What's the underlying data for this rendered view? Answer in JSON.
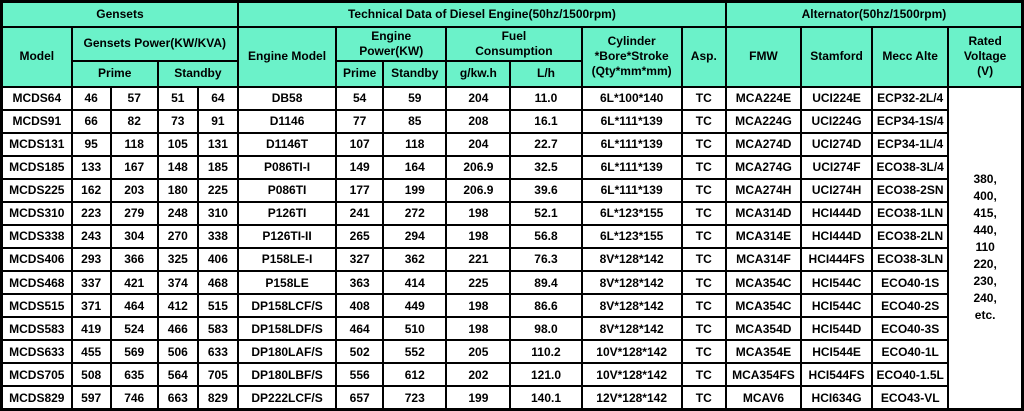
{
  "table": {
    "groups": {
      "gensets": "Gensets",
      "engine": "Technical Data of Diesel Engine(50hz/1500rpm)",
      "alternator": "Alternator(50hz/1500rpm)"
    },
    "headers": {
      "model": "Model",
      "gensets_power": "Gensets Power(KW/KVA)",
      "prime": "Prime",
      "standby": "Standby",
      "engine_model": "Engine Model",
      "engine_power": "Engine\nPower(KW)",
      "engine_prime": "Prime",
      "engine_standby": "Standby",
      "fuel_consumption": "Fuel\nConsumption",
      "g_kwh": "g/kw.h",
      "lh": "L/h",
      "cylinder": "Cylinder\n*Bore*Stroke\n(Qty*mm*mm)",
      "asp": "Asp.",
      "fmw": "FMW",
      "stamford": "Stamford",
      "mecc_alte": "Mecc Alte",
      "rated_voltage": "Rated\nVoltage\n(V)"
    },
    "rated_voltage_text": "380,\n400,\n415,\n440,\n110\n220,\n230,\n240,\netc.",
    "rows": [
      [
        "MCDS64",
        "46",
        "57",
        "51",
        "64",
        "DB58",
        "54",
        "59",
        "204",
        "11.0",
        "6L*100*140",
        "TC",
        "MCA224E",
        "UCI224E",
        "ECP32-2L/4"
      ],
      [
        "MCDS91",
        "66",
        "82",
        "73",
        "91",
        "D1146",
        "77",
        "85",
        "208",
        "16.1",
        "6L*111*139",
        "TC",
        "MCA224G",
        "UCI224G",
        "ECP34-1S/4"
      ],
      [
        "MCDS131",
        "95",
        "118",
        "105",
        "131",
        "D1146T",
        "107",
        "118",
        "204",
        "22.7",
        "6L*111*139",
        "TC",
        "MCA274D",
        "UCI274D",
        "ECP34-1L/4"
      ],
      [
        "MCDS185",
        "133",
        "167",
        "148",
        "185",
        "P086TI-I",
        "149",
        "164",
        "206.9",
        "32.5",
        "6L*111*139",
        "TC",
        "MCA274G",
        "UCI274F",
        "ECO38-3L/4"
      ],
      [
        "MCDS225",
        "162",
        "203",
        "180",
        "225",
        "P086TI",
        "177",
        "199",
        "206.9",
        "39.6",
        "6L*111*139",
        "TC",
        "MCA274H",
        "UCI274H",
        "ECO38-2SN"
      ],
      [
        "MCDS310",
        "223",
        "279",
        "248",
        "310",
        "P126TI",
        "241",
        "272",
        "198",
        "52.1",
        "6L*123*155",
        "TC",
        "MCA314D",
        "HCI444D",
        "ECO38-1LN"
      ],
      [
        "MCDS338",
        "243",
        "304",
        "270",
        "338",
        "P126TI-II",
        "265",
        "294",
        "198",
        "56.8",
        "6L*123*155",
        "TC",
        "MCA314E",
        "HCI444D",
        "ECO38-2LN"
      ],
      [
        "MCDS406",
        "293",
        "366",
        "325",
        "406",
        "P158LE-I",
        "327",
        "362",
        "221",
        "76.3",
        "8V*128*142",
        "TC",
        "MCA314F",
        "HCI444FS",
        "ECO38-3LN"
      ],
      [
        "MCDS468",
        "337",
        "421",
        "374",
        "468",
        "P158LE",
        "363",
        "414",
        "225",
        "89.4",
        "8V*128*142",
        "TC",
        "MCA354C",
        "HCI544C",
        "ECO40-1S"
      ],
      [
        "MCDS515",
        "371",
        "464",
        "412",
        "515",
        "DP158LCF/S",
        "408",
        "449",
        "198",
        "86.6",
        "8V*128*142",
        "TC",
        "MCA354C",
        "HCI544C",
        "ECO40-2S"
      ],
      [
        "MCDS583",
        "419",
        "524",
        "466",
        "583",
        "DP158LDF/S",
        "464",
        "510",
        "198",
        "98.0",
        "8V*128*142",
        "TC",
        "MCA354D",
        "HCI544D",
        "ECO40-3S"
      ],
      [
        "MCDS633",
        "455",
        "569",
        "506",
        "633",
        "DP180LAF/S",
        "502",
        "552",
        "205",
        "110.2",
        "10V*128*142",
        "TC",
        "MCA354E",
        "HCI544E",
        "ECO40-1L"
      ],
      [
        "MCDS705",
        "508",
        "635",
        "564",
        "705",
        "DP180LBF/S",
        "556",
        "612",
        "202",
        "121.0",
        "10V*128*142",
        "TC",
        "MCA354FS",
        "HCI544FS",
        "ECO40-1.5L"
      ],
      [
        "MCDS829",
        "597",
        "746",
        "663",
        "829",
        "DP222LCF/S",
        "657",
        "723",
        "199",
        "140.1",
        "12V*128*142",
        "TC",
        "MCAV6",
        "HCI634G",
        "ECO43-VL"
      ]
    ]
  },
  "colors": {
    "header_bg": "#6bf2c9",
    "border": "#000000",
    "cell_bg": "#ffffff"
  }
}
